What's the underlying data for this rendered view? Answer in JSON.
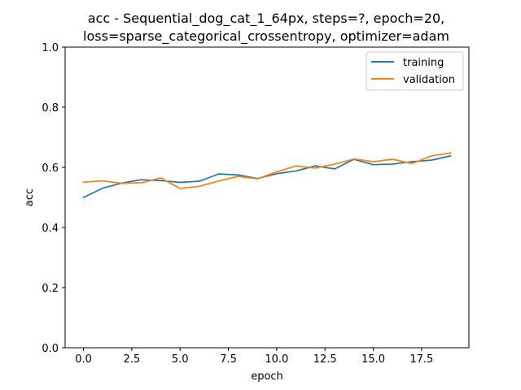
{
  "chart_data": {
    "type": "line",
    "title_lines": [
      "acc - Sequential_dog_cat_1_64px, steps=?, epoch=20,",
      "loss=sparse_categorical_crossentropy, optimizer=adam"
    ],
    "xlabel": "epoch",
    "ylabel": "acc",
    "xlim": [
      -0.95,
      19.95
    ],
    "ylim": [
      0.0,
      1.0
    ],
    "xticks": [
      0.0,
      2.5,
      5.0,
      7.5,
      10.0,
      12.5,
      15.0,
      17.5
    ],
    "xtick_labels": [
      "0.0",
      "2.5",
      "5.0",
      "7.5",
      "10.0",
      "12.5",
      "15.0",
      "17.5"
    ],
    "yticks": [
      0.0,
      0.2,
      0.4,
      0.6,
      0.8,
      1.0
    ],
    "ytick_labels": [
      "0.0",
      "0.2",
      "0.4",
      "0.6",
      "0.8",
      "1.0"
    ],
    "grid": false,
    "legend_position": "top-right",
    "x": [
      0,
      1,
      2,
      3,
      4,
      5,
      6,
      7,
      8,
      9,
      10,
      11,
      12,
      13,
      14,
      15,
      16,
      17,
      18,
      19
    ],
    "series": [
      {
        "name": "training",
        "color": "#1f77b4",
        "values": [
          0.5,
          0.531,
          0.548,
          0.559,
          0.556,
          0.55,
          0.554,
          0.578,
          0.575,
          0.563,
          0.579,
          0.588,
          0.605,
          0.595,
          0.627,
          0.609,
          0.611,
          0.619,
          0.624,
          0.638
        ]
      },
      {
        "name": "validation",
        "color": "#ff7f0e",
        "values": [
          0.551,
          0.555,
          0.547,
          0.549,
          0.565,
          0.53,
          0.537,
          0.555,
          0.57,
          0.562,
          0.585,
          0.605,
          0.598,
          0.611,
          0.628,
          0.619,
          0.627,
          0.613,
          0.638,
          0.648
        ]
      }
    ]
  }
}
